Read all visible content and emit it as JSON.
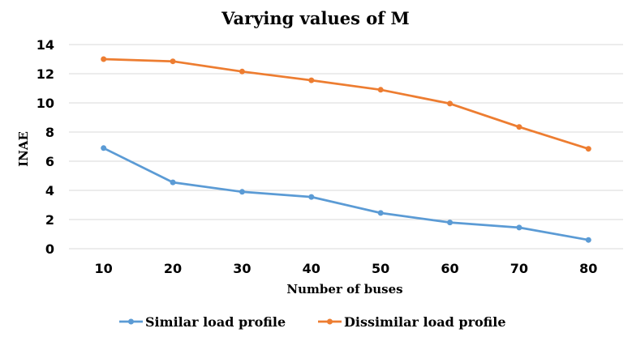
{
  "chart_data": {
    "type": "line",
    "title": "Varying values of M",
    "xlabel": "Number of buses",
    "ylabel": "INAE",
    "x": [
      10,
      20,
      30,
      40,
      50,
      60,
      70,
      80
    ],
    "ylim": [
      0,
      14
    ],
    "yticks": [
      0,
      2,
      4,
      6,
      8,
      10,
      12,
      14
    ],
    "grid": true,
    "legend_position": "bottom",
    "series": [
      {
        "name": "Similar load profile",
        "color": "#5b9bd5",
        "values": [
          6.9,
          4.55,
          3.9,
          3.55,
          2.45,
          1.8,
          1.45,
          0.6
        ]
      },
      {
        "name": "Dissimilar load profile",
        "color": "#ed7d31",
        "values": [
          13.0,
          12.85,
          12.15,
          11.55,
          10.9,
          9.95,
          8.35,
          6.85
        ]
      }
    ]
  }
}
